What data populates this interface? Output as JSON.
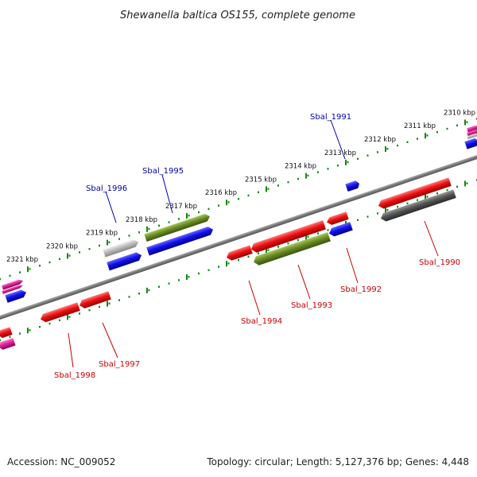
{
  "title": "Shewanella baltica OS155, complete genome",
  "footer": {
    "accession": "Accession: NC_009052",
    "topology": "Topology: circular; Length: 5,127,376 bp; Genes: 4,448"
  },
  "ticks": [
    "2310 kbp",
    "2311 kbp",
    "2312 kbp",
    "2313 kbp",
    "2314 kbp",
    "2315 kbp",
    "2316 kbp",
    "2317 kbp",
    "2318 kbp",
    "2319 kbp",
    "2320 kbp",
    "2321 kbp"
  ],
  "genes": {
    "Sbal_1990": "Sbal_1990",
    "Sbal_1991": "Sbal_1991",
    "Sbal_1992": "Sbal_1992",
    "Sbal_1993": "Sbal_1993",
    "Sbal_1994": "Sbal_1994",
    "Sbal_1995": "Sbal_1995",
    "Sbal_1996": "Sbal_1996",
    "Sbal_1997": "Sbal_1997",
    "Sbal_1998": "Sbal_1998"
  },
  "colors": {
    "red": "#dd1111",
    "blue": "#1111dd",
    "olive": "#6b8e23",
    "gray": "#555555",
    "lightgray": "#bbbbbb",
    "magenta": "#dd2299",
    "tick": "#118811",
    "label_forward": "#0000aa",
    "label_reverse": "#cc0000"
  }
}
